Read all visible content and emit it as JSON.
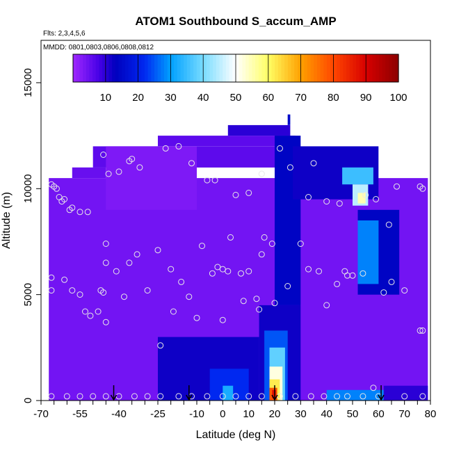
{
  "chart_data": {
    "type": "heatmap",
    "title": "ATOM1 Southbound S_accum_AMP",
    "subtitle_flights": "Flts: 2,3,4,5,6",
    "subtitle_dates": "MMDD: 0801,0803,0806,0808,0812",
    "xlabel": "Latitude (deg N)",
    "ylabel": "Altitude (m)",
    "xlim": [
      -70,
      80
    ],
    "ylim": [
      0,
      17000
    ],
    "x_ticks": [
      -70,
      -55,
      -40,
      -25,
      -10,
      0,
      10,
      20,
      30,
      40,
      50,
      60,
      70,
      80
    ],
    "x_tick_labels": [
      "-70",
      "-55",
      "-40",
      "-25",
      "-10",
      "0",
      "10",
      "20",
      "30",
      "40",
      "50",
      "60",
      "70",
      "80"
    ],
    "y_ticks": [
      0,
      5000,
      10000,
      15000
    ],
    "y_tick_labels": [
      "0",
      "5000",
      "10000",
      "15000"
    ],
    "colorbar": {
      "min": 0,
      "max": 100,
      "ticks": [
        10,
        20,
        30,
        40,
        50,
        60,
        70,
        80,
        90,
        100
      ],
      "tick_labels": [
        "10",
        "20",
        "30",
        "40",
        "50",
        "60",
        "70",
        "80",
        "90",
        "100"
      ],
      "placement": "top inside plot"
    },
    "grid": false,
    "arrows_at_latitude": [
      -42,
      -13,
      20,
      61
    ],
    "regions": [
      {
        "x": [
          -67,
          79
        ],
        "y": [
          0,
          10500
        ],
        "value": 4
      },
      {
        "x": [
          -58,
          -45
        ],
        "y": [
          10500,
          11000
        ],
        "value": 5
      },
      {
        "x": [
          -50,
          30
        ],
        "y": [
          11000,
          12000
        ],
        "value": 6
      },
      {
        "x": [
          -25,
          28
        ],
        "y": [
          12000,
          12500
        ],
        "value": 6
      },
      {
        "x": [
          2,
          26
        ],
        "y": [
          12500,
          13000
        ],
        "value": 10
      },
      {
        "x": [
          25,
          26
        ],
        "y": [
          13000,
          13500
        ],
        "value": 15
      },
      {
        "x": [
          -45,
          -10
        ],
        "y": [
          9000,
          12000
        ],
        "value": 3
      },
      {
        "x": [
          20,
          30
        ],
        "y": [
          4500,
          12500
        ],
        "value": 14
      },
      {
        "x": [
          27,
          60
        ],
        "y": [
          9500,
          12000
        ],
        "value": 12
      },
      {
        "x": [
          46,
          58
        ],
        "y": [
          10200,
          11000
        ],
        "value": 35
      },
      {
        "x": [
          50,
          56
        ],
        "y": [
          9200,
          10200
        ],
        "value": 45
      },
      {
        "x": [
          52,
          55
        ],
        "y": [
          9300,
          9800
        ],
        "value": 55
      },
      {
        "x": [
          52,
          68
        ],
        "y": [
          5000,
          9000
        ],
        "value": 14
      },
      {
        "x": [
          52,
          60
        ],
        "y": [
          5500,
          8500
        ],
        "value": 28
      },
      {
        "x": [
          -25,
          14
        ],
        "y": [
          0,
          3000
        ],
        "value": 12
      },
      {
        "x": [
          -5,
          10
        ],
        "y": [
          0,
          1500
        ],
        "value": 22
      },
      {
        "x": [
          0,
          4
        ],
        "y": [
          0,
          700
        ],
        "value": 32
      },
      {
        "x": [
          14,
          30
        ],
        "y": [
          0,
          4500
        ],
        "value": 12
      },
      {
        "x": [
          16,
          25
        ],
        "y": [
          0,
          3300
        ],
        "value": 25
      },
      {
        "x": [
          18,
          24
        ],
        "y": [
          0,
          2500
        ],
        "value": 38
      },
      {
        "x": [
          18,
          23
        ],
        "y": [
          0,
          1600
        ],
        "value": 52
      },
      {
        "x": [
          18,
          22
        ],
        "y": [
          0,
          1000
        ],
        "value": 62
      },
      {
        "x": [
          18,
          21
        ],
        "y": [
          0,
          600
        ],
        "value": 78
      },
      {
        "x": [
          19,
          20.5
        ],
        "y": [
          100,
          500
        ],
        "value": 88
      },
      {
        "x": [
          40,
          62
        ],
        "y": [
          0,
          500
        ],
        "value": 28
      },
      {
        "x": [
          62,
          79
        ],
        "y": [
          0,
          700
        ],
        "value": 10
      }
    ],
    "points": [
      [
        -66,
        10200
      ],
      [
        -65,
        10100
      ],
      [
        -64,
        10000
      ],
      [
        -63,
        9600
      ],
      [
        -62,
        9400
      ],
      [
        -61,
        9500
      ],
      [
        -59,
        9000
      ],
      [
        -58,
        9100
      ],
      [
        -55,
        8900
      ],
      [
        -52,
        8900
      ],
      [
        -46,
        11600
      ],
      [
        -44,
        10700
      ],
      [
        -40,
        10800
      ],
      [
        -36,
        11300
      ],
      [
        -35,
        11400
      ],
      [
        -32,
        11000
      ],
      [
        -22,
        11900
      ],
      [
        -17,
        12000
      ],
      [
        -12,
        11200
      ],
      [
        -6,
        10400
      ],
      [
        -3,
        10400
      ],
      [
        5,
        9700
      ],
      [
        10,
        9800
      ],
      [
        15,
        10700
      ],
      [
        22,
        11900
      ],
      [
        26,
        11000
      ],
      [
        33,
        9600
      ],
      [
        35,
        11200
      ],
      [
        40,
        9400
      ],
      [
        45,
        9300
      ],
      [
        -66,
        5800
      ],
      [
        -66,
        5200
      ],
      [
        -61,
        5700
      ],
      [
        -58,
        5200
      ],
      [
        -55,
        5000
      ],
      [
        -53,
        4200
      ],
      [
        -51,
        4000
      ],
      [
        -48,
        4200
      ],
      [
        -47,
        5200
      ],
      [
        -46,
        5100
      ],
      [
        -45,
        3700
      ],
      [
        -45,
        7400
      ],
      [
        -45,
        6500
      ],
      [
        -41,
        6100
      ],
      [
        -38,
        4900
      ],
      [
        -36,
        6500
      ],
      [
        -33,
        6900
      ],
      [
        -29,
        5200
      ],
      [
        -25,
        7100
      ],
      [
        -20,
        6200
      ],
      [
        -19,
        4200
      ],
      [
        -16,
        5600
      ],
      [
        -13,
        4900
      ],
      [
        -10,
        3900
      ],
      [
        -8,
        7300
      ],
      [
        -4,
        6000
      ],
      [
        -2,
        6300
      ],
      [
        0,
        6200
      ],
      [
        0,
        3800
      ],
      [
        2,
        6100
      ],
      [
        3,
        7700
      ],
      [
        7,
        6000
      ],
      [
        8,
        4700
      ],
      [
        10,
        6100
      ],
      [
        13,
        4800
      ],
      [
        14,
        4300
      ],
      [
        15,
        6900
      ],
      [
        16,
        7700
      ],
      [
        19,
        7400
      ],
      [
        20,
        4600
      ],
      [
        25,
        5400
      ],
      [
        30,
        7400
      ],
      [
        33,
        6200
      ],
      [
        37,
        6100
      ],
      [
        40,
        4500
      ],
      [
        44,
        5500
      ],
      [
        47,
        6100
      ],
      [
        48,
        5900
      ],
      [
        50,
        5900
      ],
      [
        54,
        6000
      ],
      [
        62,
        5100
      ],
      [
        65,
        5600
      ],
      [
        70,
        5200
      ],
      [
        76,
        3300
      ],
      [
        77,
        3300
      ],
      [
        55,
        9700
      ],
      [
        59,
        9500
      ],
      [
        64,
        8300
      ],
      [
        67,
        10100
      ],
      [
        76,
        10100
      ],
      [
        77,
        10000
      ],
      [
        -24,
        2600
      ],
      [
        -66,
        200
      ],
      [
        -60,
        200
      ],
      [
        -55,
        200
      ],
      [
        -50,
        200
      ],
      [
        -45,
        200
      ],
      [
        -40,
        200
      ],
      [
        -34,
        200
      ],
      [
        -29,
        200
      ],
      [
        -24,
        200
      ],
      [
        -17,
        200
      ],
      [
        -12,
        200
      ],
      [
        -6,
        200
      ],
      [
        0,
        200
      ],
      [
        5,
        200
      ],
      [
        10,
        200
      ],
      [
        15,
        200
      ],
      [
        22,
        200
      ],
      [
        28,
        200
      ],
      [
        34,
        200
      ],
      [
        39,
        200
      ],
      [
        44,
        200
      ],
      [
        48,
        200
      ],
      [
        54,
        200
      ],
      [
        60,
        200
      ],
      [
        70,
        200
      ],
      [
        77,
        200
      ],
      [
        58,
        600
      ]
    ]
  }
}
